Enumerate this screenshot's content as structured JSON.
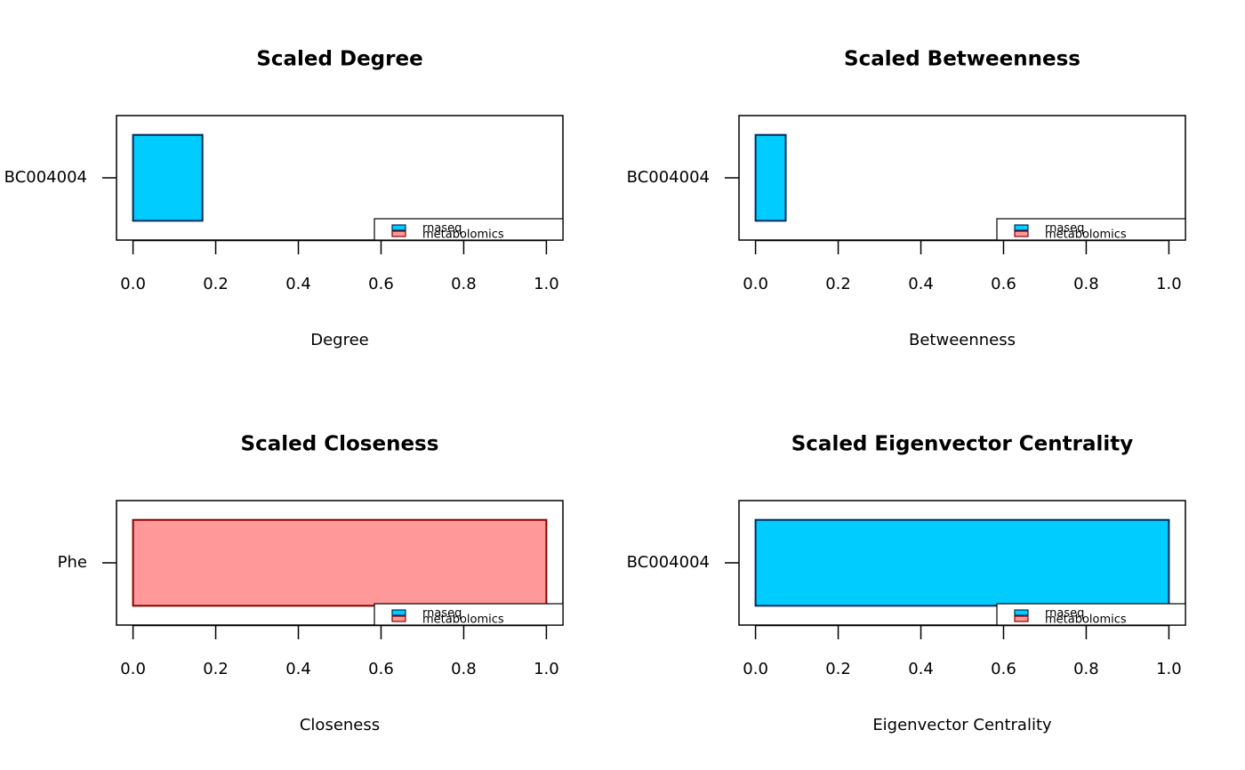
{
  "chart_data": [
    {
      "type": "bar",
      "orientation": "horizontal",
      "title": "Scaled Degree",
      "xlabel": "Degree",
      "categories": [
        "BC004004"
      ],
      "values": [
        0.168
      ],
      "color": "#00ccff",
      "edgecolor": "#002a5c",
      "xlim": [
        -0.04,
        1.04
      ],
      "xticks": [
        {
          "value": 0,
          "label": "0.0"
        },
        0.2,
        0.4,
        0.6,
        0.8,
        {
          "value": 1,
          "label": "1.0"
        }
      ],
      "legend": {
        "position": "bottomright",
        "entries": [
          {
            "name": "rnaseq",
            "color": "#00ccff",
            "edgecolor": "#002a5c"
          },
          {
            "name": "metabolomics",
            "color": "#ff9999",
            "edgecolor": "#8b0000"
          }
        ]
      }
    },
    {
      "type": "bar",
      "orientation": "horizontal",
      "title": "Scaled Betweenness",
      "xlabel": "Betweenness",
      "categories": [
        "BC004004"
      ],
      "values": [
        0.073
      ],
      "color": "#00ccff",
      "edgecolor": "#002a5c",
      "xlim": [
        -0.04,
        1.04
      ],
      "xticks": [
        {
          "value": 0,
          "label": "0.0"
        },
        0.2,
        0.4,
        0.6,
        0.8,
        {
          "value": 1,
          "label": "1.0"
        }
      ],
      "legend": {
        "position": "bottomright",
        "entries": [
          {
            "name": "rnaseq",
            "color": "#00ccff",
            "edgecolor": "#002a5c"
          },
          {
            "name": "metabolomics",
            "color": "#ff9999",
            "edgecolor": "#8b0000"
          }
        ]
      }
    },
    {
      "type": "bar",
      "orientation": "horizontal",
      "title": "Scaled Closeness",
      "xlabel": "Closeness",
      "categories": [
        "Phe"
      ],
      "values": [
        1.0
      ],
      "color": "#ff9999",
      "edgecolor": "#8b0000",
      "xlim": [
        -0.04,
        1.04
      ],
      "xticks": [
        {
          "value": 0,
          "label": "0.0"
        },
        0.2,
        0.4,
        0.6,
        0.8,
        {
          "value": 1,
          "label": "1.0"
        }
      ],
      "legend": {
        "position": "bottomright",
        "entries": [
          {
            "name": "rnaseq",
            "color": "#00ccff",
            "edgecolor": "#002a5c"
          },
          {
            "name": "metabolomics",
            "color": "#ff9999",
            "edgecolor": "#8b0000"
          }
        ]
      }
    },
    {
      "type": "bar",
      "orientation": "horizontal",
      "title": "Scaled Eigenvector Centrality",
      "xlabel": "Eigenvector Centrality",
      "categories": [
        "BC004004"
      ],
      "values": [
        1.0
      ],
      "color": "#00ccff",
      "edgecolor": "#002a5c",
      "xlim": [
        -0.04,
        1.04
      ],
      "xticks": [
        {
          "value": 0,
          "label": "0.0"
        },
        0.2,
        0.4,
        0.6,
        0.8,
        {
          "value": 1,
          "label": "1.0"
        }
      ],
      "legend": {
        "position": "bottomright",
        "entries": [
          {
            "name": "rnaseq",
            "color": "#00ccff",
            "edgecolor": "#002a5c"
          },
          {
            "name": "metabolomics",
            "color": "#ff9999",
            "edgecolor": "#8b0000"
          }
        ]
      }
    }
  ]
}
